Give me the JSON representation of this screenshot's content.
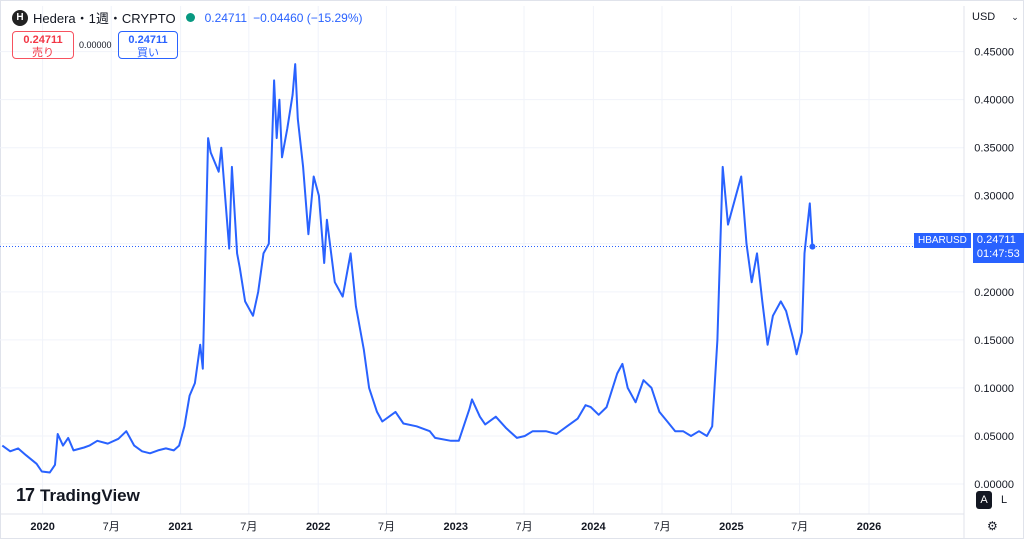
{
  "header": {
    "symbol_title": "Hedera・1週・CRYPTO",
    "logo_letter": "H",
    "last_price": "0.24711",
    "change": "−0.04460 (−15.29%)",
    "status_color": "#089981"
  },
  "trade": {
    "sell_price": "0.24711",
    "sell_label": "売り",
    "spread": "0.00000",
    "buy_price": "0.24711",
    "buy_label": "買い"
  },
  "currency": "USD",
  "price_tag": {
    "symbol": "HBARUSD",
    "price": "0.24711",
    "countdown": "01:47:53"
  },
  "branding": "TradingView",
  "scale_buttons": {
    "auto": "A",
    "log": "L"
  },
  "colors": {
    "line": "#2962ff",
    "grid": "#f0f3fa",
    "sell": "#f23645",
    "buy": "#2962ff"
  },
  "chart_data": {
    "type": "line",
    "series": [
      {
        "values": [
          [
            "2019-09-16",
            0.04
          ],
          [
            "2019-10-07",
            0.034
          ],
          [
            "2019-10-28",
            0.037
          ],
          [
            "2019-11-18",
            0.03
          ],
          [
            "2019-12-16",
            0.021
          ],
          [
            "2019-12-30",
            0.013
          ],
          [
            "2020-01-20",
            0.012
          ],
          [
            "2020-02-03",
            0.02
          ],
          [
            "2020-02-10",
            0.052
          ],
          [
            "2020-02-24",
            0.04
          ],
          [
            "2020-03-09",
            0.048
          ],
          [
            "2020-03-23",
            0.035
          ],
          [
            "2020-04-20",
            0.038
          ],
          [
            "2020-05-04",
            0.04
          ],
          [
            "2020-05-25",
            0.045
          ],
          [
            "2020-06-22",
            0.042
          ],
          [
            "2020-07-20",
            0.047
          ],
          [
            "2020-08-10",
            0.055
          ],
          [
            "2020-08-31",
            0.04
          ],
          [
            "2020-09-21",
            0.034
          ],
          [
            "2020-10-12",
            0.032
          ],
          [
            "2020-11-02",
            0.035
          ],
          [
            "2020-11-23",
            0.037
          ],
          [
            "2020-12-14",
            0.035
          ],
          [
            "2020-12-28",
            0.04
          ],
          [
            "2021-01-11",
            0.06
          ],
          [
            "2021-01-25",
            0.092
          ],
          [
            "2021-02-08",
            0.105
          ],
          [
            "2021-02-22",
            0.145
          ],
          [
            "2021-03-01",
            0.12
          ],
          [
            "2021-03-15",
            0.36
          ],
          [
            "2021-03-22",
            0.345
          ],
          [
            "2021-04-12",
            0.325
          ],
          [
            "2021-04-19",
            0.35
          ],
          [
            "2021-05-10",
            0.245
          ],
          [
            "2021-05-17",
            0.33
          ],
          [
            "2021-05-31",
            0.24
          ],
          [
            "2021-06-07",
            0.225
          ],
          [
            "2021-06-21",
            0.19
          ],
          [
            "2021-07-12",
            0.175
          ],
          [
            "2021-07-26",
            0.2
          ],
          [
            "2021-08-09",
            0.24
          ],
          [
            "2021-08-23",
            0.25
          ],
          [
            "2021-09-06",
            0.42
          ],
          [
            "2021-09-13",
            0.36
          ],
          [
            "2021-09-20",
            0.4
          ],
          [
            "2021-09-27",
            0.34
          ],
          [
            "2021-10-11",
            0.37
          ],
          [
            "2021-10-25",
            0.405
          ],
          [
            "2021-11-01",
            0.437
          ],
          [
            "2021-11-08",
            0.38
          ],
          [
            "2021-11-22",
            0.33
          ],
          [
            "2021-12-06",
            0.26
          ],
          [
            "2021-12-20",
            0.32
          ],
          [
            "2022-01-03",
            0.3
          ],
          [
            "2022-01-17",
            0.23
          ],
          [
            "2022-01-24",
            0.275
          ],
          [
            "2022-02-14",
            0.21
          ],
          [
            "2022-03-07",
            0.195
          ],
          [
            "2022-03-28",
            0.24
          ],
          [
            "2022-04-11",
            0.185
          ],
          [
            "2022-05-02",
            0.14
          ],
          [
            "2022-05-16",
            0.1
          ],
          [
            "2022-06-06",
            0.075
          ],
          [
            "2022-06-20",
            0.065
          ],
          [
            "2022-07-25",
            0.075
          ],
          [
            "2022-08-15",
            0.063
          ],
          [
            "2022-09-19",
            0.06
          ],
          [
            "2022-10-24",
            0.055
          ],
          [
            "2022-11-07",
            0.048
          ],
          [
            "2022-12-19",
            0.045
          ],
          [
            "2023-01-09",
            0.045
          ],
          [
            "2023-02-06",
            0.078
          ],
          [
            "2023-02-13",
            0.088
          ],
          [
            "2023-03-06",
            0.07
          ],
          [
            "2023-03-20",
            0.062
          ],
          [
            "2023-04-17",
            0.07
          ],
          [
            "2023-05-15",
            0.058
          ],
          [
            "2023-06-12",
            0.048
          ],
          [
            "2023-07-03",
            0.05
          ],
          [
            "2023-07-24",
            0.055
          ],
          [
            "2023-08-28",
            0.055
          ],
          [
            "2023-09-25",
            0.052
          ],
          [
            "2023-10-23",
            0.06
          ],
          [
            "2023-11-20",
            0.068
          ],
          [
            "2023-12-11",
            0.082
          ],
          [
            "2023-12-25",
            0.08
          ],
          [
            "2024-01-15",
            0.072
          ],
          [
            "2024-02-05",
            0.08
          ],
          [
            "2024-03-04",
            0.115
          ],
          [
            "2024-03-18",
            0.125
          ],
          [
            "2024-04-01",
            0.1
          ],
          [
            "2024-04-22",
            0.085
          ],
          [
            "2024-05-13",
            0.108
          ],
          [
            "2024-06-03",
            0.1
          ],
          [
            "2024-06-24",
            0.075
          ],
          [
            "2024-07-15",
            0.065
          ],
          [
            "2024-08-05",
            0.055
          ],
          [
            "2024-08-26",
            0.055
          ],
          [
            "2024-09-16",
            0.05
          ],
          [
            "2024-10-07",
            0.055
          ],
          [
            "2024-10-28",
            0.05
          ],
          [
            "2024-11-11",
            0.06
          ],
          [
            "2024-11-25",
            0.15
          ],
          [
            "2024-12-09",
            0.33
          ],
          [
            "2024-12-23",
            0.27
          ],
          [
            "2025-01-13",
            0.3
          ],
          [
            "2025-01-27",
            0.32
          ],
          [
            "2025-02-10",
            0.25
          ],
          [
            "2025-02-24",
            0.21
          ],
          [
            "2025-03-10",
            0.24
          ],
          [
            "2025-03-24",
            0.19
          ],
          [
            "2025-04-07",
            0.145
          ],
          [
            "2025-04-21",
            0.175
          ],
          [
            "2025-05-12",
            0.19
          ],
          [
            "2025-05-26",
            0.18
          ],
          [
            "2025-06-16",
            0.148
          ],
          [
            "2025-06-23",
            0.135
          ],
          [
            "2025-07-07",
            0.158
          ],
          [
            "2025-07-14",
            0.24
          ],
          [
            "2025-07-28",
            0.292
          ],
          [
            "2025-08-04",
            0.247
          ]
        ]
      }
    ],
    "x_ticks": [
      {
        "date": "2020-01-01",
        "label": "2020"
      },
      {
        "date": "2020-07-01",
        "label": "7月"
      },
      {
        "date": "2021-01-01",
        "label": "2021"
      },
      {
        "date": "2021-07-01",
        "label": "7月"
      },
      {
        "date": "2022-01-01",
        "label": "2022"
      },
      {
        "date": "2022-07-01",
        "label": "7月"
      },
      {
        "date": "2023-01-01",
        "label": "2023"
      },
      {
        "date": "2023-07-01",
        "label": "7月"
      },
      {
        "date": "2024-01-01",
        "label": "2024"
      },
      {
        "date": "2024-07-01",
        "label": "7月"
      },
      {
        "date": "2025-01-01",
        "label": "2025"
      },
      {
        "date": "2025-07-01",
        "label": "7月"
      },
      {
        "date": "2026-01-01",
        "label": "2026"
      }
    ],
    "y_ticks": [
      "0.00000",
      "0.05000",
      "0.10000",
      "0.15000",
      "0.20000",
      "0.25000",
      "0.30000",
      "0.35000",
      "0.40000",
      "0.45000"
    ],
    "xlim": [
      "2019-09-10",
      "2026-09-10"
    ],
    "ylim": [
      0,
      0.46
    ],
    "current_price": 0.24711,
    "grid": true
  }
}
